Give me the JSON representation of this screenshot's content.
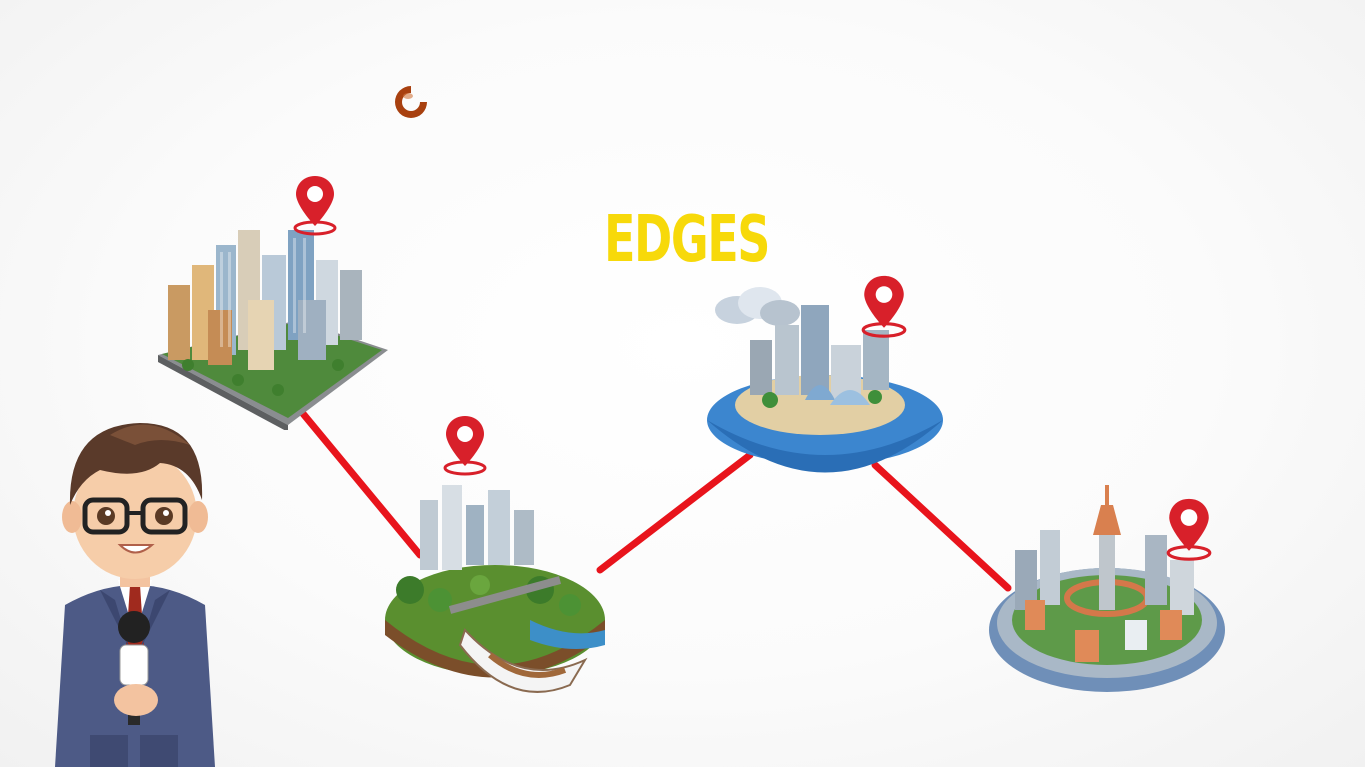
{
  "slide": {
    "title": "EDGES",
    "title_color": "#f7d90a"
  },
  "colors": {
    "edge": "#e8141c",
    "pin": "#d8202a",
    "loader": "#a8400f"
  },
  "icons": {
    "loader": "loading-spinner-icon",
    "pin": "location-pin-icon",
    "reporter": "reporter-avatar"
  }
}
